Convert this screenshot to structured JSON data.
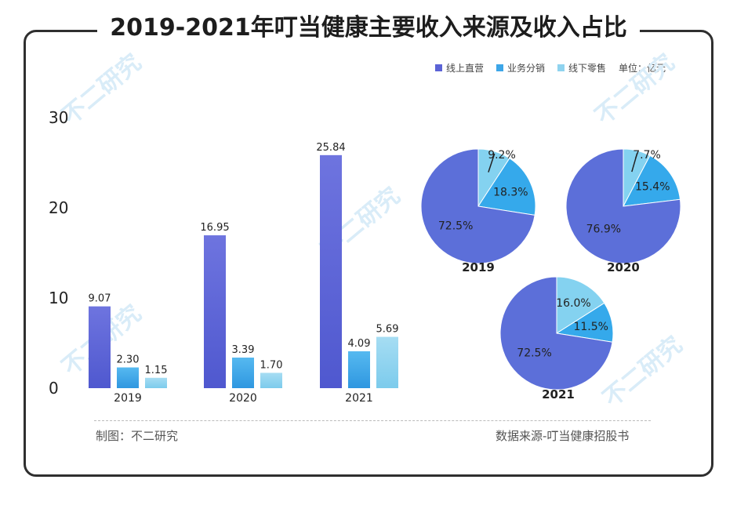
{
  "title": "2019-2021年叮当健康主要收入来源及收入占比",
  "legend": {
    "items": [
      "线上直营",
      "业务分销",
      "线下零售"
    ],
    "unit": "单位：亿元"
  },
  "credit": "制图：不二研究",
  "source": "数据来源-叮当健康招股书",
  "watermark": "不二研究",
  "colors": {
    "online": "#5b63d6",
    "distribution": "#3da6e8",
    "offline": "#8fd3ef",
    "pie_online": "#5c6fd9",
    "pie_distribution": "#35a9eb",
    "pie_offline": "#84d2f0"
  },
  "chart_data": [
    {
      "type": "bar",
      "title": "",
      "categories": [
        "2019",
        "2020",
        "2021"
      ],
      "series": [
        {
          "name": "线上直营",
          "values": [
            9.07,
            16.95,
            25.84
          ],
          "labels": [
            "9.07",
            "16.95",
            "25.84"
          ]
        },
        {
          "name": "业务分销",
          "values": [
            2.3,
            3.39,
            4.09
          ],
          "labels": [
            "2.30",
            "3.39",
            "4.09"
          ]
        },
        {
          "name": "线下零售",
          "values": [
            1.15,
            1.7,
            5.69
          ],
          "labels": [
            "1.15",
            "1.70",
            "5.69"
          ]
        }
      ],
      "yticks": [
        "0",
        "10",
        "20",
        "30"
      ],
      "ylim": [
        0,
        30
      ],
      "xlabel": "",
      "ylabel": ""
    },
    {
      "type": "pie",
      "title": "2019",
      "slices": [
        {
          "name": "线上直营",
          "value": 72.5,
          "label": "72.5%"
        },
        {
          "name": "业务分销",
          "value": 18.3,
          "label": "18.3%"
        },
        {
          "name": "线下零售",
          "value": 9.2,
          "label": "9.2%"
        }
      ]
    },
    {
      "type": "pie",
      "title": "2020",
      "slices": [
        {
          "name": "线上直营",
          "value": 76.9,
          "label": "76.9%"
        },
        {
          "name": "业务分销",
          "value": 15.4,
          "label": "15.4%"
        },
        {
          "name": "线下零售",
          "value": 7.7,
          "label": "7.7%"
        }
      ]
    },
    {
      "type": "pie",
      "title": "2021",
      "slices": [
        {
          "name": "线上直营",
          "value": 72.5,
          "label": "72.5%"
        },
        {
          "name": "业务分销",
          "value": 11.5,
          "label": "11.5%"
        },
        {
          "name": "线下零售",
          "value": 16.0,
          "label": "16.0%"
        }
      ]
    }
  ]
}
